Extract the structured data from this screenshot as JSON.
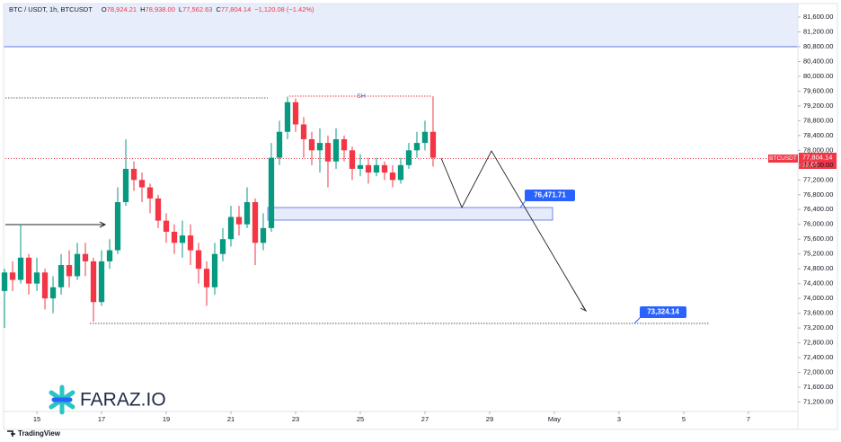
{
  "chart_data": {
    "type": "candlestick",
    "title": "BTC / USDT, 1h, BTCUSDT",
    "ohlc": [
      {
        "label": "O",
        "value": "78,924.21"
      },
      {
        "label": "H",
        "value": "78,938.00"
      },
      {
        "label": "L",
        "value": "77,562.63"
      },
      {
        "label": "C",
        "value": "77,804.14"
      }
    ],
    "change": "−1,120.08 (−1.42%)",
    "candles": {
      "x": [
        14.0,
        14.25,
        14.5,
        14.75,
        15.0,
        15.25,
        15.5,
        15.75,
        16.0,
        16.25,
        16.5,
        16.75,
        17.0,
        17.25,
        17.5,
        17.75,
        18.0,
        18.25,
        18.5,
        18.75,
        19.0,
        19.25,
        19.5,
        19.75,
        20.0,
        20.25,
        20.5,
        20.75,
        21.0,
        21.25,
        21.5,
        21.75,
        22.0,
        22.25,
        22.5,
        22.75,
        23.0,
        23.25,
        23.5,
        23.75,
        24.0,
        24.25,
        24.5,
        24.75,
        25.0,
        25.25,
        25.5,
        25.75,
        26.0,
        26.25,
        26.5,
        26.75,
        27.0,
        27.25
      ],
      "open": [
        74200,
        74700,
        74500,
        75100,
        74400,
        74700,
        74000,
        74300,
        74900,
        74600,
        75200,
        75000,
        73900,
        75000,
        75300,
        76600,
        77500,
        77200,
        77000,
        76700,
        76100,
        75800,
        75500,
        75700,
        75300,
        74800,
        74300,
        75200,
        75600,
        76200,
        76000,
        76600,
        75500,
        75900,
        77800,
        78500,
        79300,
        78700,
        78300,
        78000,
        78200,
        77700,
        78300,
        78000,
        77500,
        77600,
        77400,
        77600,
        77400,
        77200,
        77600,
        78000,
        78200,
        78500
      ],
      "high": [
        74800,
        75000,
        76000,
        75200,
        75100,
        74800,
        74600,
        75200,
        75300,
        75500,
        75500,
        75100,
        75300,
        75600,
        77000,
        78300,
        77700,
        77400,
        77100,
        76800,
        76300,
        76000,
        76100,
        76000,
        75500,
        75000,
        75500,
        75900,
        76500,
        76500,
        77000,
        76700,
        76300,
        78200,
        78800,
        79450,
        79400,
        78900,
        78500,
        78600,
        78400,
        78600,
        78400,
        78100,
        77900,
        77800,
        77800,
        77700,
        77600,
        77800,
        78200,
        78500,
        78800,
        79460
      ],
      "low": [
        73200,
        74200,
        74400,
        74100,
        74200,
        73700,
        73600,
        74100,
        74300,
        74500,
        74600,
        73370,
        73800,
        74800,
        75200,
        76500,
        76900,
        76600,
        76300,
        75900,
        75500,
        75200,
        75100,
        74900,
        74400,
        73800,
        74100,
        75000,
        75400,
        75700,
        75900,
        74900,
        75300,
        75800,
        77600,
        78300,
        78500,
        77800,
        77600,
        77400,
        77000,
        77500,
        77700,
        77200,
        77300,
        77100,
        77300,
        77200,
        77000,
        77100,
        77500,
        77800,
        78000,
        77560
      ],
      "close": [
        74700,
        74500,
        75100,
        74400,
        74700,
        74000,
        74300,
        74900,
        74600,
        75200,
        75000,
        73900,
        75000,
        75300,
        76600,
        77500,
        77200,
        77000,
        76700,
        76100,
        75800,
        75500,
        75700,
        75300,
        74800,
        74300,
        75200,
        75600,
        76200,
        76000,
        76600,
        75500,
        75900,
        77800,
        78500,
        79300,
        78700,
        78300,
        78000,
        78200,
        77700,
        78300,
        78000,
        77500,
        77600,
        77400,
        77600,
        77400,
        77200,
        77600,
        78000,
        78200,
        78500,
        77800
      ]
    },
    "up_color": "#089981",
    "down_color": "#f23645",
    "xlim": [
      13.86,
      38.53
    ],
    "xticks": [
      15,
      17,
      19,
      21,
      23,
      25,
      27,
      29,
      {
        "value": 31,
        "label": "May"
      },
      {
        "value": 33,
        "label": "3"
      },
      {
        "value": 35,
        "label": "5"
      },
      {
        "value": 37,
        "label": "7"
      }
    ],
    "ylim": [
      70945,
      81940
    ],
    "yticks": [
      {
        "value": 71200,
        "label": "71,200.00"
      },
      {
        "value": 71600,
        "label": "71,600.00"
      },
      {
        "value": 72000,
        "label": "72,000.00"
      },
      {
        "value": 72400,
        "label": "72,400.00"
      },
      {
        "value": 72800,
        "label": "72,800.00"
      },
      {
        "value": 73200,
        "label": "73,200.00"
      },
      {
        "value": 73600,
        "label": "73,600.00"
      },
      {
        "value": 74000,
        "label": "74,000.00"
      },
      {
        "value": 74400,
        "label": "74,400.00"
      },
      {
        "value": 74800,
        "label": "74,800.00"
      },
      {
        "value": 75200,
        "label": "75,200.00"
      },
      {
        "value": 75600,
        "label": "75,600.00"
      },
      {
        "value": 76000,
        "label": "76,000.00"
      },
      {
        "value": 76400,
        "label": "76,400.00"
      },
      {
        "value": 76800,
        "label": "76,800.00"
      },
      {
        "value": 77200,
        "label": "77,200.00"
      },
      {
        "value": 77600,
        "label": "77,600.00"
      },
      {
        "value": 78000,
        "label": "78,000.00"
      },
      {
        "value": 78400,
        "label": "78,400.00"
      },
      {
        "value": 78800,
        "label": "78,800.00"
      },
      {
        "value": 79200,
        "label": "79,200.00"
      },
      {
        "value": 79600,
        "label": "79,600.00"
      },
      {
        "value": 80000,
        "label": "80,000.00"
      },
      {
        "value": 80400,
        "label": "80,400.00"
      },
      {
        "value": 80800,
        "label": "80,800.00"
      },
      {
        "value": 81200,
        "label": "81,200.00"
      },
      {
        "value": 81600,
        "label": "81,600.00"
      }
    ],
    "swing_label": "SH",
    "price_tags": [
      "76,471.71",
      "73,324.14"
    ],
    "last_price": {
      "symbol": "BTCUSDT",
      "price": "77,804.14",
      "countdown": "15:05"
    },
    "logo": "FARAZ.IO",
    "footer": "TradingView"
  }
}
